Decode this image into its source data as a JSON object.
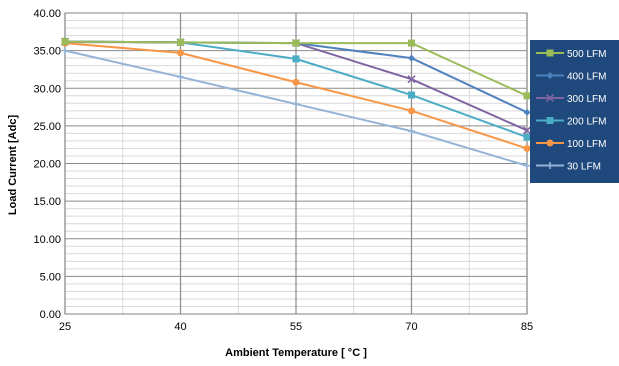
{
  "chart_data": {
    "type": "line",
    "title": "",
    "xlabel": "Ambient Temperature [ °C ]",
    "ylabel": "Load Current [Adc]",
    "x": [
      25,
      40,
      55,
      70,
      85
    ],
    "x_tick_labels": [
      "25",
      "40",
      "55",
      "70",
      "85"
    ],
    "ylim": [
      0,
      40
    ],
    "y_ticks": [
      0,
      5,
      10,
      15,
      20,
      25,
      30,
      35,
      40
    ],
    "y_tick_labels": [
      "0.00",
      "5.00",
      "10.00",
      "15.00",
      "20.00",
      "25.00",
      "30.00",
      "35.00",
      "40.00"
    ],
    "grid": true,
    "legend_position": "right",
    "legend_background": "#1f497d",
    "series": [
      {
        "name": "500 LFM",
        "color": "#9bbb59",
        "marker": "square",
        "values": [
          36.2,
          36.1,
          36.0,
          36.0,
          29.0
        ]
      },
      {
        "name": "400 LFM",
        "color": "#4f81bd",
        "marker": "diamond",
        "values": [
          36.2,
          36.1,
          36.0,
          34.0,
          26.8
        ]
      },
      {
        "name": "300 LFM",
        "color": "#8064a2",
        "marker": "x",
        "values": [
          36.2,
          36.1,
          36.0,
          31.2,
          24.4
        ]
      },
      {
        "name": "200 LFM",
        "color": "#4bacc6",
        "marker": "square",
        "values": [
          36.2,
          36.1,
          33.9,
          29.1,
          23.5
        ]
      },
      {
        "name": "100 LFM",
        "color": "#f79646",
        "marker": "circle",
        "values": [
          36.0,
          34.7,
          30.8,
          27.0,
          22.0
        ]
      },
      {
        "name": "30 LFM",
        "color": "#95b3d7",
        "marker": "plus",
        "values": [
          35.0,
          31.5,
          27.9,
          24.3,
          19.7
        ]
      }
    ]
  }
}
